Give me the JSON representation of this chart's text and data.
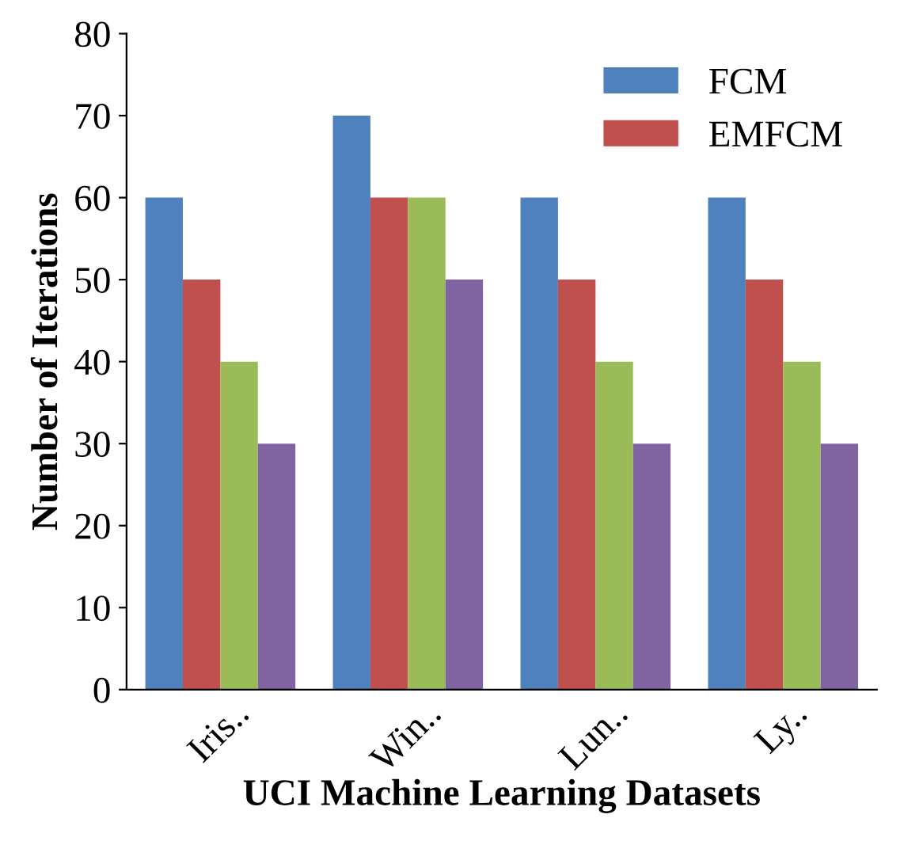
{
  "chart_data": {
    "type": "bar",
    "xlabel": "UCI Machine Learning Datasets",
    "ylabel": "Number of Iterations",
    "categories": [
      "Iris..",
      "Win..",
      "Lun..",
      "Ly.."
    ],
    "series": [
      {
        "name": "FCM",
        "color": "#4f81bd",
        "values": [
          60,
          70,
          60,
          60
        ]
      },
      {
        "name": "EMFCM",
        "color": "#c0504d",
        "values": [
          50,
          60,
          50,
          50
        ]
      },
      {
        "color": "#9bbb59",
        "values": [
          40,
          60,
          40,
          40
        ]
      },
      {
        "color": "#8064a2",
        "values": [
          30,
          50,
          30,
          30
        ]
      }
    ],
    "ylim": [
      0,
      80
    ],
    "yticks": [
      0,
      10,
      20,
      30,
      40,
      50,
      60,
      70,
      80
    ],
    "grid": false,
    "legend": "top right"
  }
}
